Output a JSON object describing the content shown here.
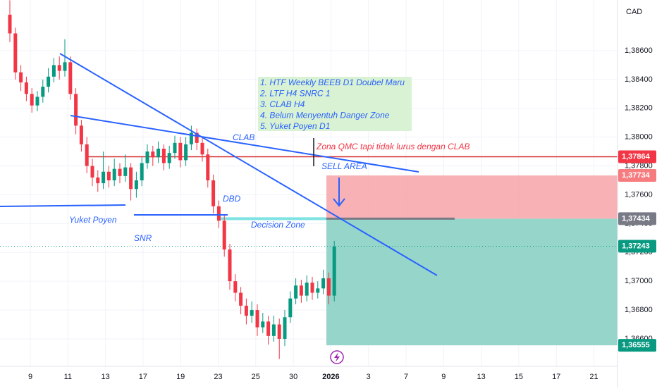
{
  "chart_data": {
    "type": "candlestick",
    "currency": "CAD",
    "categories": [
      "9",
      "11",
      "13",
      "17",
      "19",
      "23",
      "25",
      "30",
      "2026",
      "3",
      "7",
      "9",
      "13",
      "15",
      "17",
      "21"
    ],
    "ylim": [
      1.36409,
      1.38952
    ],
    "yticks": [
      {
        "value": 1.366,
        "label": "1,36600"
      },
      {
        "value": 1.368,
        "label": "1,36800"
      },
      {
        "value": 1.37,
        "label": "1,37000"
      },
      {
        "value": 1.372,
        "label": "1,37200"
      },
      {
        "value": 1.374,
        "label": "1,37400"
      },
      {
        "value": 1.376,
        "label": "1,37600"
      },
      {
        "value": 1.378,
        "label": "1,37800"
      },
      {
        "value": 1.38,
        "label": "1,38000"
      },
      {
        "value": 1.382,
        "label": "1,38200"
      },
      {
        "value": 1.384,
        "label": "1,38400"
      },
      {
        "value": 1.386,
        "label": "1,38600"
      }
    ],
    "up_color": "#089981",
    "down_color": "#f23645",
    "candles": [
      [
        1.3885,
        1.3895,
        1.3866,
        1.3872
      ],
      [
        1.3872,
        1.3876,
        1.384,
        1.3845
      ],
      [
        1.3845,
        1.385,
        1.3832,
        1.3838
      ],
      [
        1.3838,
        1.3842,
        1.3825,
        1.383
      ],
      [
        1.383,
        1.3834,
        1.3817,
        1.3822
      ],
      [
        1.3822,
        1.3832,
        1.3818,
        1.3828
      ],
      [
        1.3828,
        1.384,
        1.3824,
        1.3835
      ],
      [
        1.3835,
        1.3848,
        1.3831,
        1.3842
      ],
      [
        1.3842,
        1.3855,
        1.3838,
        1.385
      ],
      [
        1.385,
        1.3856,
        1.384,
        1.3846
      ],
      [
        1.3846,
        1.3868,
        1.3842,
        1.3852
      ],
      [
        1.3852,
        1.3856,
        1.3826,
        1.383
      ],
      [
        1.383,
        1.3834,
        1.3802,
        1.3808
      ],
      [
        1.3808,
        1.3812,
        1.379,
        1.3795
      ],
      [
        1.3795,
        1.38,
        1.3775,
        1.378
      ],
      [
        1.378,
        1.3785,
        1.3766,
        1.3772
      ],
      [
        1.3772,
        1.3777,
        1.3762,
        1.3768
      ],
      [
        1.3768,
        1.379,
        1.3764,
        1.3776
      ],
      [
        1.3776,
        1.378,
        1.3765,
        1.377
      ],
      [
        1.377,
        1.3785,
        1.3766,
        1.3778
      ],
      [
        1.3778,
        1.3782,
        1.3768,
        1.3773
      ],
      [
        1.3773,
        1.3788,
        1.3769,
        1.3779
      ],
      [
        1.3779,
        1.3782,
        1.3756,
        1.3764
      ],
      [
        1.3764,
        1.3776,
        1.3758,
        1.377
      ],
      [
        1.377,
        1.3786,
        1.3766,
        1.3782
      ],
      [
        1.3782,
        1.3795,
        1.3778,
        1.379
      ],
      [
        1.379,
        1.3794,
        1.378,
        1.3786
      ],
      [
        1.3786,
        1.3797,
        1.3782,
        1.3792
      ],
      [
        1.3792,
        1.3795,
        1.3777,
        1.3782
      ],
      [
        1.3782,
        1.3794,
        1.3778,
        1.3789
      ],
      [
        1.3789,
        1.3801,
        1.3785,
        1.3796
      ],
      [
        1.3796,
        1.38,
        1.3779,
        1.3784
      ],
      [
        1.3784,
        1.38,
        1.378,
        1.3795
      ],
      [
        1.3795,
        1.3808,
        1.3791,
        1.3803
      ],
      [
        1.3803,
        1.3806,
        1.3791,
        1.3796
      ],
      [
        1.3796,
        1.38,
        1.3783,
        1.3788
      ],
      [
        1.3788,
        1.3792,
        1.3765,
        1.377
      ],
      [
        1.377,
        1.3774,
        1.3747,
        1.3752
      ],
      [
        1.3752,
        1.3756,
        1.3737,
        1.3742
      ],
      [
        1.3742,
        1.3746,
        1.3717,
        1.3722
      ],
      [
        1.3722,
        1.3726,
        1.3694,
        1.37
      ],
      [
        1.37,
        1.3705,
        1.3686,
        1.3692
      ],
      [
        1.3692,
        1.3696,
        1.3677,
        1.3683
      ],
      [
        1.3683,
        1.3688,
        1.367,
        1.3676
      ],
      [
        1.3676,
        1.3686,
        1.3671,
        1.368
      ],
      [
        1.368,
        1.3684,
        1.3662,
        1.3668
      ],
      [
        1.3668,
        1.3678,
        1.3664,
        1.3672
      ],
      [
        1.3672,
        1.3676,
        1.3656,
        1.3662
      ],
      [
        1.3662,
        1.3676,
        1.3658,
        1.367
      ],
      [
        1.367,
        1.3674,
        1.3646,
        1.366
      ],
      [
        1.366,
        1.368,
        1.3655,
        1.3675
      ],
      [
        1.3675,
        1.3693,
        1.3671,
        1.3688
      ],
      [
        1.3688,
        1.3702,
        1.3684,
        1.3697
      ],
      [
        1.3697,
        1.3701,
        1.3685,
        1.369
      ],
      [
        1.369,
        1.3704,
        1.3686,
        1.3699
      ],
      [
        1.3699,
        1.3703,
        1.3687,
        1.3692
      ],
      [
        1.3692,
        1.37,
        1.3688,
        1.3695
      ],
      [
        1.3695,
        1.3708,
        1.3691,
        1.3702
      ],
      [
        1.3702,
        1.3706,
        1.3684,
        1.369
      ],
      [
        1.369,
        1.3728,
        1.3686,
        1.3724
      ]
    ],
    "levels": [
      {
        "value": 1.37864,
        "label": "1,37864",
        "color": "#f23645"
      },
      {
        "value": 1.37734,
        "label": "1,37734",
        "color": "#f77c80"
      },
      {
        "value": 1.37434,
        "label": "1,37434",
        "color": "#787b86"
      },
      {
        "value": 1.37243,
        "label": "1,37243",
        "color": "#089981"
      },
      {
        "value": 1.36555,
        "label": "1,36555",
        "color": "#089981"
      }
    ],
    "notes": [
      "1. HTF Weekly BEEB D1 Doubel Maru",
      "2. LTF H4 SNRC 1",
      "3. CLAB H4",
      "4. Belum Menyentuh Danger Zone",
      "5. Yuket Poyen D1"
    ],
    "annotations": {
      "clab": "CLAB",
      "zona": "Zona QMC tapi tidak lurus dengan CLAB",
      "sell_area": "SELL AREA",
      "dbd": "DBD",
      "decision_zone": "Decision Zone",
      "yuket_poyen": "Yuket Poyen",
      "snr": "SNR"
    }
  }
}
